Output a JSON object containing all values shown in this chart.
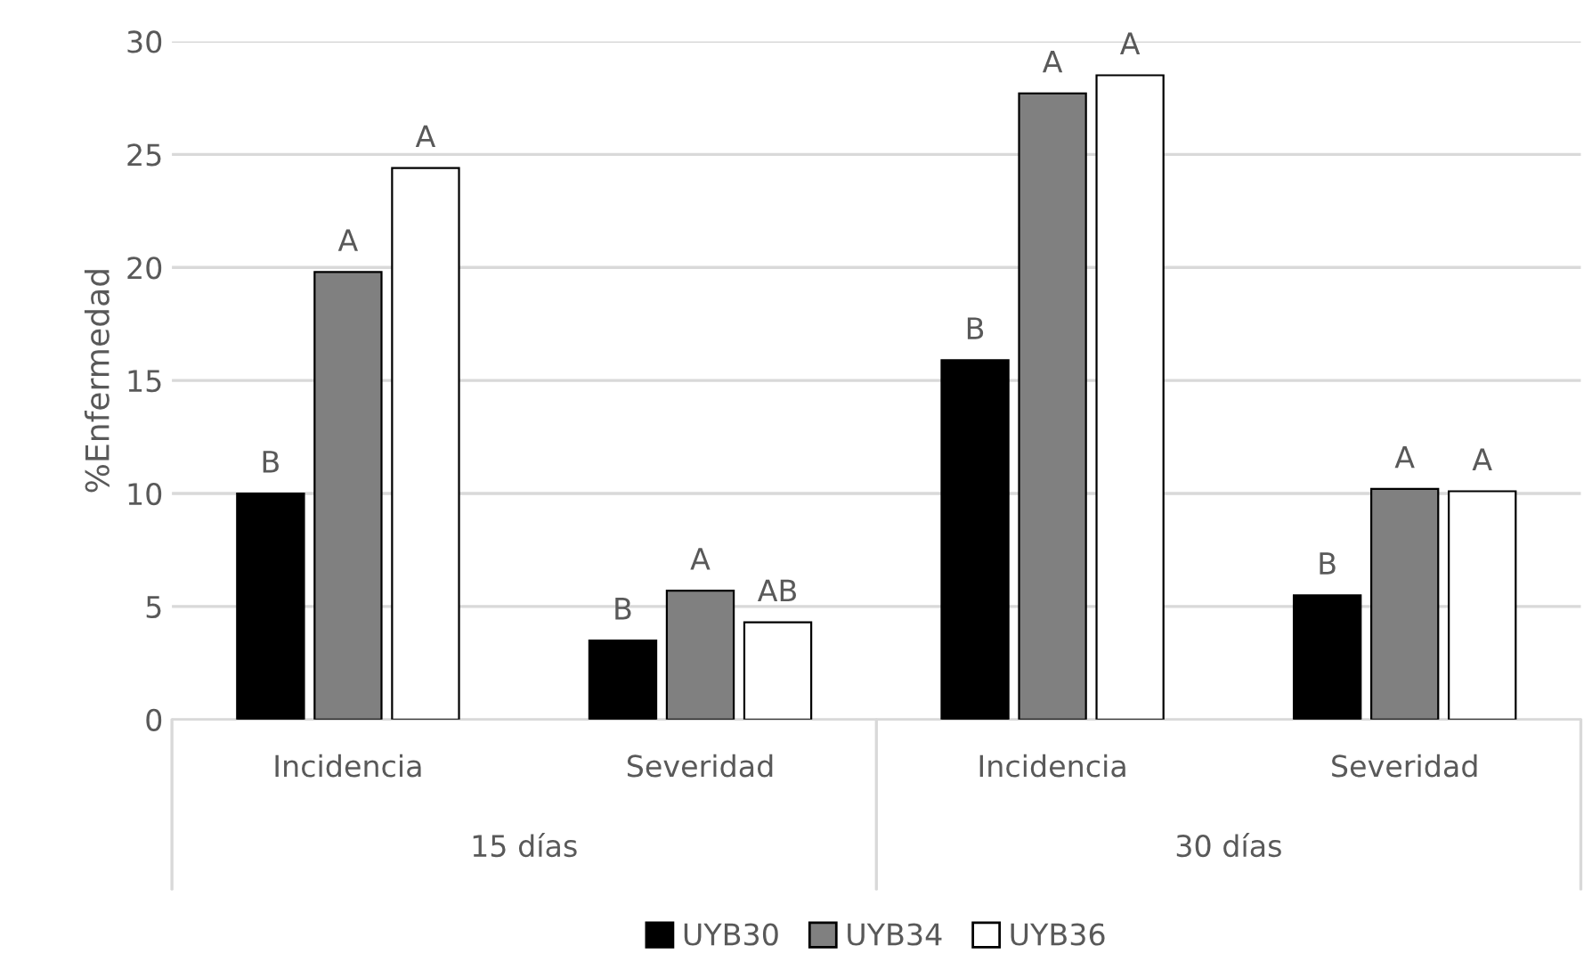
{
  "chart_data": {
    "type": "bar",
    "ylabel": "%Enfermedad",
    "categories": [
      "Incidencia",
      "Severidad",
      "Incidencia",
      "Severidad"
    ],
    "annotations": [
      "15 días",
      "30 días"
    ],
    "series": [
      {
        "name": "UYB30",
        "color": "#000000",
        "values": [
          10.0,
          3.5,
          15.9,
          5.5
        ],
        "value_labels": [
          "B",
          "B",
          "B",
          "B"
        ]
      },
      {
        "name": "UYB34",
        "color": "#808080",
        "values": [
          19.8,
          5.7,
          27.7,
          10.2
        ],
        "value_labels": [
          "A",
          "A",
          "A",
          "A"
        ]
      },
      {
        "name": "UYB36",
        "color": "#ffffff",
        "values": [
          24.4,
          4.3,
          28.5,
          10.1
        ],
        "value_labels": [
          "A",
          "AB",
          "A",
          "A"
        ]
      }
    ],
    "ylim": [
      0,
      30
    ],
    "yticks": [
      0,
      5,
      10,
      15,
      20,
      25,
      30
    ],
    "grid": "y",
    "legend": "bottom"
  }
}
